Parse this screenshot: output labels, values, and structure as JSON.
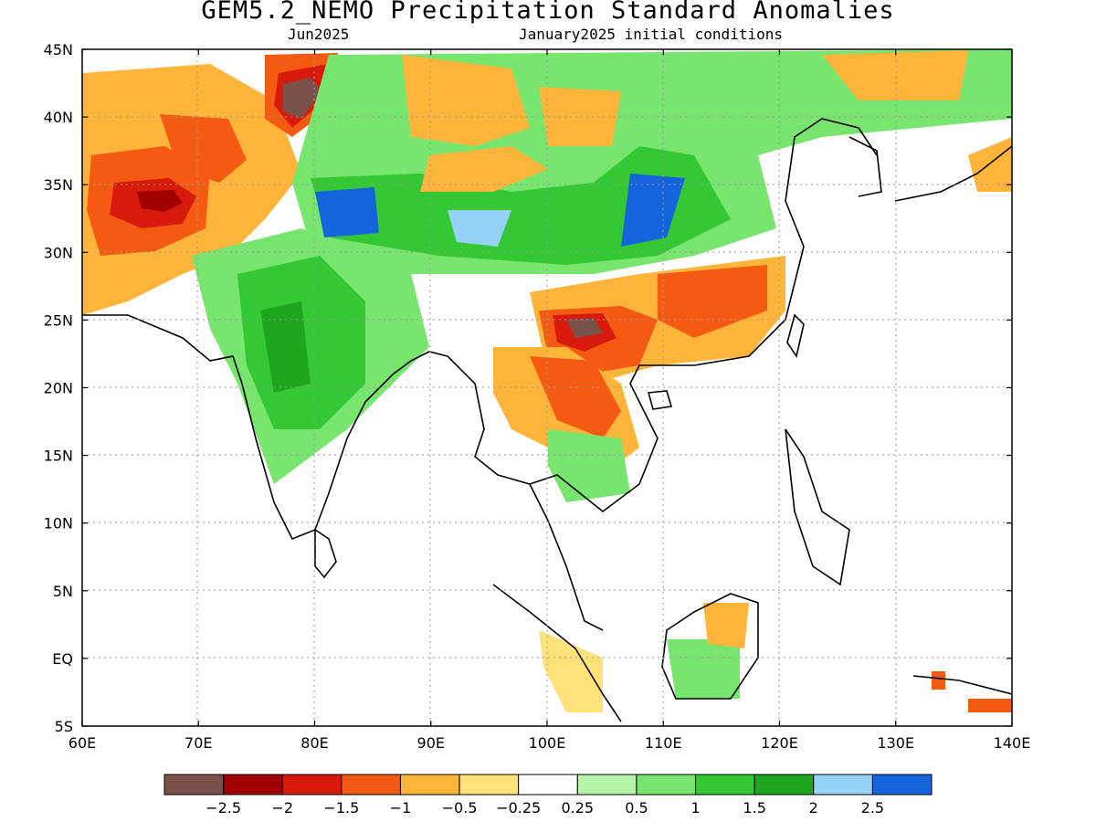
{
  "title": "GEM5.2_NEMO Precipitation Standard Anomalies",
  "valid_month": "Jun2025",
  "initial_conditions": "January2025 initial conditions",
  "lon_labels": [
    "60E",
    "70E",
    "80E",
    "90E",
    "100E",
    "110E",
    "120E",
    "130E",
    "140E"
  ],
  "lat_labels": [
    "45N",
    "40N",
    "35N",
    "30N",
    "25N",
    "20N",
    "15N",
    "10N",
    "5N",
    "EQ",
    "5S"
  ],
  "legend": {
    "colors": [
      "#7a5148",
      "#a00000",
      "#d81a0c",
      "#f55a12",
      "#ffb53a",
      "#ffe37a",
      "#ffffff",
      "#b4f5a8",
      "#78e66e",
      "#34c834",
      "#1ea51e",
      "#96d2fa",
      "#1464dc"
    ],
    "labels": [
      "−2.5",
      "−2",
      "−1.5",
      "−1",
      "−0.5",
      "−0.25",
      "0.25",
      "0.5",
      "1",
      "1.5",
      "2",
      "2.5"
    ]
  }
}
